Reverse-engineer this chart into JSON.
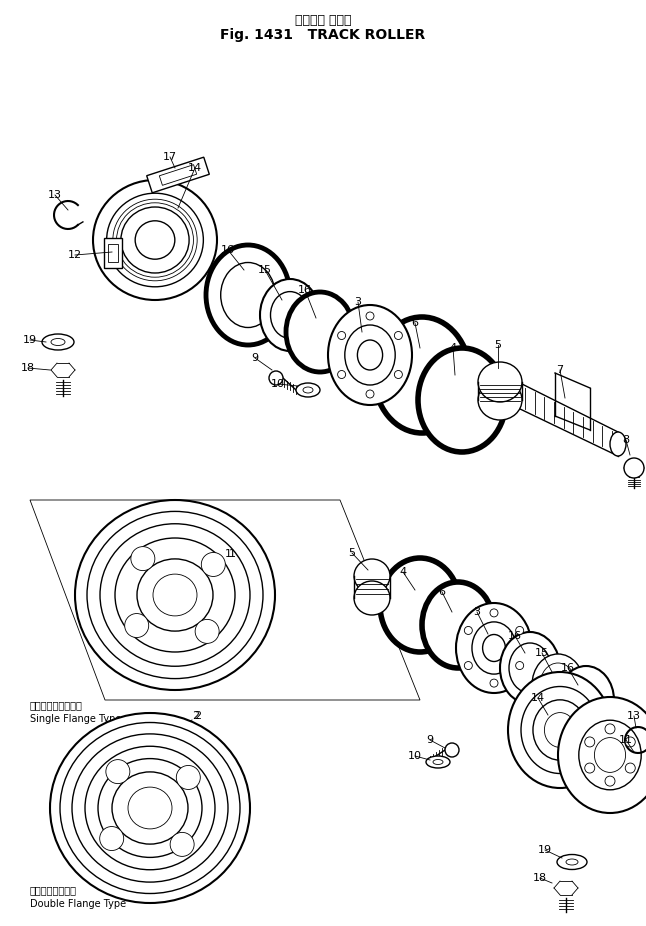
{
  "title_jp": "トラック ローラ",
  "title_en": "Fig. 1431   TRACK ROLLER",
  "bg_color": "#ffffff",
  "line_color": "#000000",
  "fig_width": 6.46,
  "fig_height": 9.26,
  "label_sf_jp": "シングルフランジ型",
  "label_sf_en": "Single Flange Type",
  "label_df_jp": "ダブルフランジ型",
  "label_df_en": "Double Flange Type"
}
